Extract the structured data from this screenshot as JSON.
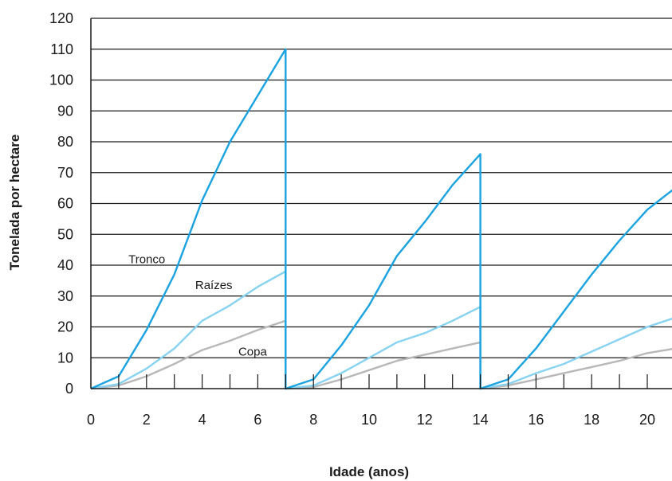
{
  "chart_data": {
    "type": "line",
    "title": "",
    "xlabel": "Idade (anos)",
    "ylabel": "Tonelada por hectare",
    "xlim": [
      0,
      21
    ],
    "ylim": [
      0,
      120
    ],
    "x_ticks": [
      0,
      2,
      4,
      6,
      8,
      10,
      12,
      14,
      16,
      18,
      20
    ],
    "x_tick_labels": [
      "0",
      "2",
      "4",
      "6",
      "8",
      "10",
      "12",
      "14",
      "16",
      "18",
      "20"
    ],
    "y_ticks": [
      0,
      10,
      20,
      30,
      40,
      50,
      60,
      70,
      80,
      90,
      100,
      110,
      120
    ],
    "y_tick_labels": [
      "0",
      "10",
      "20",
      "30",
      "40",
      "50",
      "60",
      "70",
      "80",
      "90",
      "100",
      "110",
      "120"
    ],
    "grid": "horizontal",
    "series": [
      {
        "name": "Tronco",
        "color": "#1aa3e0",
        "points": [
          [
            0,
            0
          ],
          [
            1,
            4
          ],
          [
            2,
            19
          ],
          [
            3,
            37
          ],
          [
            4,
            61
          ],
          [
            5,
            80
          ],
          [
            6,
            95
          ],
          [
            7,
            110
          ],
          [
            7,
            0
          ],
          [
            8,
            3
          ],
          [
            9,
            14
          ],
          [
            10,
            27
          ],
          [
            11,
            43
          ],
          [
            12,
            54
          ],
          [
            13,
            66
          ],
          [
            14,
            76
          ],
          [
            14,
            0
          ],
          [
            15,
            3
          ],
          [
            16,
            13
          ],
          [
            17,
            25
          ],
          [
            18,
            37
          ],
          [
            19,
            48
          ],
          [
            20,
            58
          ],
          [
            21,
            65
          ]
        ]
      },
      {
        "name": "Raízes",
        "color": "#88d3f2",
        "points": [
          [
            0,
            0
          ],
          [
            1,
            1.5
          ],
          [
            2,
            6.5
          ],
          [
            3,
            13
          ],
          [
            4,
            22
          ],
          [
            5,
            27
          ],
          [
            6,
            33
          ],
          [
            7,
            38
          ],
          [
            7,
            0
          ],
          [
            8,
            1
          ],
          [
            9,
            5
          ],
          [
            10,
            10
          ],
          [
            11,
            15
          ],
          [
            12,
            18
          ],
          [
            13,
            22
          ],
          [
            14,
            26.5
          ],
          [
            14,
            0
          ],
          [
            15,
            1.5
          ],
          [
            16,
            5
          ],
          [
            17,
            8
          ],
          [
            18,
            12
          ],
          [
            19,
            16
          ],
          [
            20,
            20
          ],
          [
            21,
            23
          ]
        ]
      },
      {
        "name": "Copa",
        "color": "#b8b8b8",
        "points": [
          [
            0,
            0
          ],
          [
            1,
            1
          ],
          [
            2,
            4
          ],
          [
            3,
            8
          ],
          [
            4,
            12.5
          ],
          [
            5,
            15.5
          ],
          [
            6,
            19
          ],
          [
            7,
            22
          ],
          [
            7,
            0
          ],
          [
            8,
            0.5
          ],
          [
            9,
            3
          ],
          [
            10,
            6
          ],
          [
            11,
            9
          ],
          [
            12,
            11
          ],
          [
            13,
            13
          ],
          [
            14,
            15
          ],
          [
            14,
            0
          ],
          [
            15,
            1
          ],
          [
            16,
            3
          ],
          [
            17,
            5
          ],
          [
            18,
            7
          ],
          [
            19,
            9
          ],
          [
            20,
            11.5
          ],
          [
            21,
            13
          ]
        ]
      }
    ]
  }
}
